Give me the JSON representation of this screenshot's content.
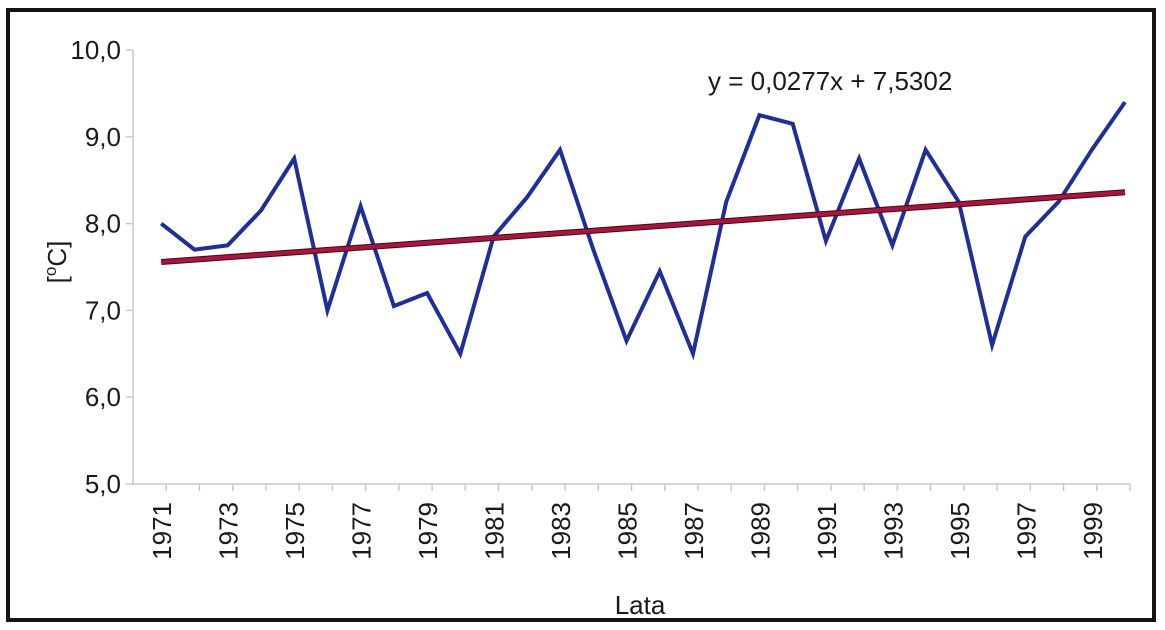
{
  "chart_data": {
    "type": "line",
    "title": "",
    "xlabel": "Lata",
    "ylabel": "[°C]",
    "ylabel_base": "[",
    "ylabel_sup": "o",
    "ylabel_unit": "C]",
    "ylim": [
      5.0,
      10.0
    ],
    "ytick_labels": [
      "5,0",
      "6,0",
      "7,0",
      "8,0",
      "9,0",
      "10,0"
    ],
    "xtick_labels": [
      "1971",
      "1973",
      "1975",
      "1977",
      "1979",
      "1981",
      "1983",
      "1985",
      "1987",
      "1989",
      "1991",
      "1993",
      "1995",
      "1997",
      "1999"
    ],
    "grid": false,
    "legend": "none",
    "x": [
      1971,
      1972,
      1973,
      1974,
      1975,
      1976,
      1977,
      1978,
      1979,
      1980,
      1981,
      1982,
      1983,
      1984,
      1985,
      1986,
      1987,
      1988,
      1989,
      1990,
      1991,
      1992,
      1993,
      1994,
      1995,
      1996,
      1997,
      1998,
      1999,
      2000
    ],
    "series": [
      {
        "values": [
          8.0,
          7.7,
          7.75,
          8.15,
          8.75,
          7.0,
          8.2,
          7.05,
          7.2,
          6.5,
          7.85,
          8.3,
          8.85,
          7.7,
          6.65,
          7.45,
          6.5,
          8.25,
          9.25,
          9.15,
          7.8,
          8.75,
          7.75,
          8.85,
          8.25,
          6.6,
          7.85,
          8.25,
          8.85,
          9.4
        ],
        "color": "#1f2f9a"
      }
    ],
    "trendline": {
      "equation": "y = 0,0277x + 7,5302",
      "slope": 0.0277,
      "intercept": 7.5302,
      "color": "#b0123a"
    }
  }
}
